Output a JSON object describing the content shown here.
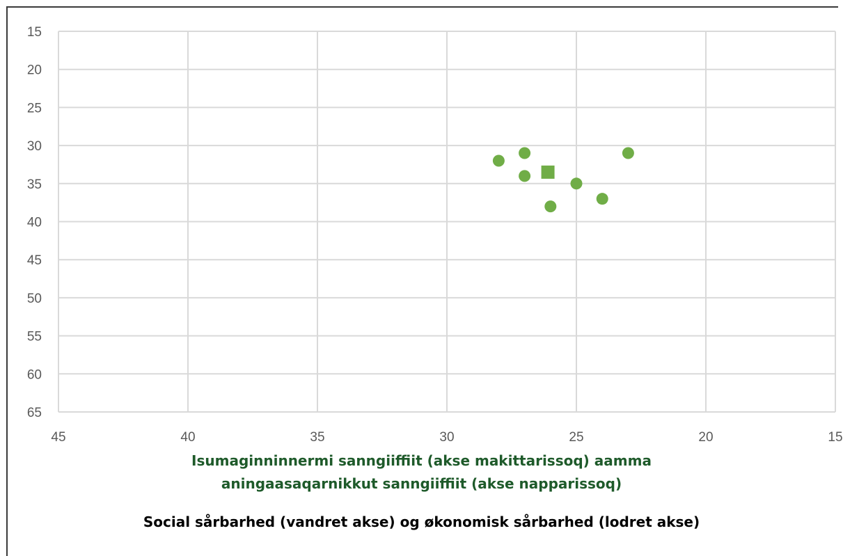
{
  "captions": {
    "greenlandic_line1": "Isumaginninnermi sanngiiffiit (akse makittarissoq) aamma",
    "greenlandic_line2": "aningaasaqarnikkut sanngiiffiit (akse napparissoq)",
    "danish": "Social sårbarhed (vandret akse) og økonomisk sårbarhed (lodret akse)"
  },
  "colors": {
    "marker": "#70ad47",
    "grid": "#d9d9d9",
    "caption_green": "#1e5a2a"
  },
  "chart_data": {
    "type": "scatter",
    "title": "",
    "xlabel": "",
    "ylabel": "",
    "x_axis": {
      "reversed": true,
      "range": [
        45,
        15
      ],
      "ticks": [
        45,
        40,
        35,
        30,
        25,
        20,
        15
      ]
    },
    "y_axis": {
      "reversed": true,
      "range": [
        15,
        65
      ],
      "ticks": [
        15,
        20,
        25,
        30,
        35,
        40,
        45,
        50,
        55,
        60,
        65
      ]
    },
    "grid": true,
    "legend": "none",
    "series": [
      {
        "marker": "circle",
        "points": [
          {
            "x": 28,
            "y": 32
          },
          {
            "x": 27,
            "y": 31
          },
          {
            "x": 27,
            "y": 34
          },
          {
            "x": 26,
            "y": 38
          },
          {
            "x": 25,
            "y": 35
          },
          {
            "x": 24,
            "y": 37
          },
          {
            "x": 23,
            "y": 31
          }
        ]
      },
      {
        "marker": "square",
        "points": [
          {
            "x": 26.1,
            "y": 33.5
          }
        ]
      }
    ]
  }
}
